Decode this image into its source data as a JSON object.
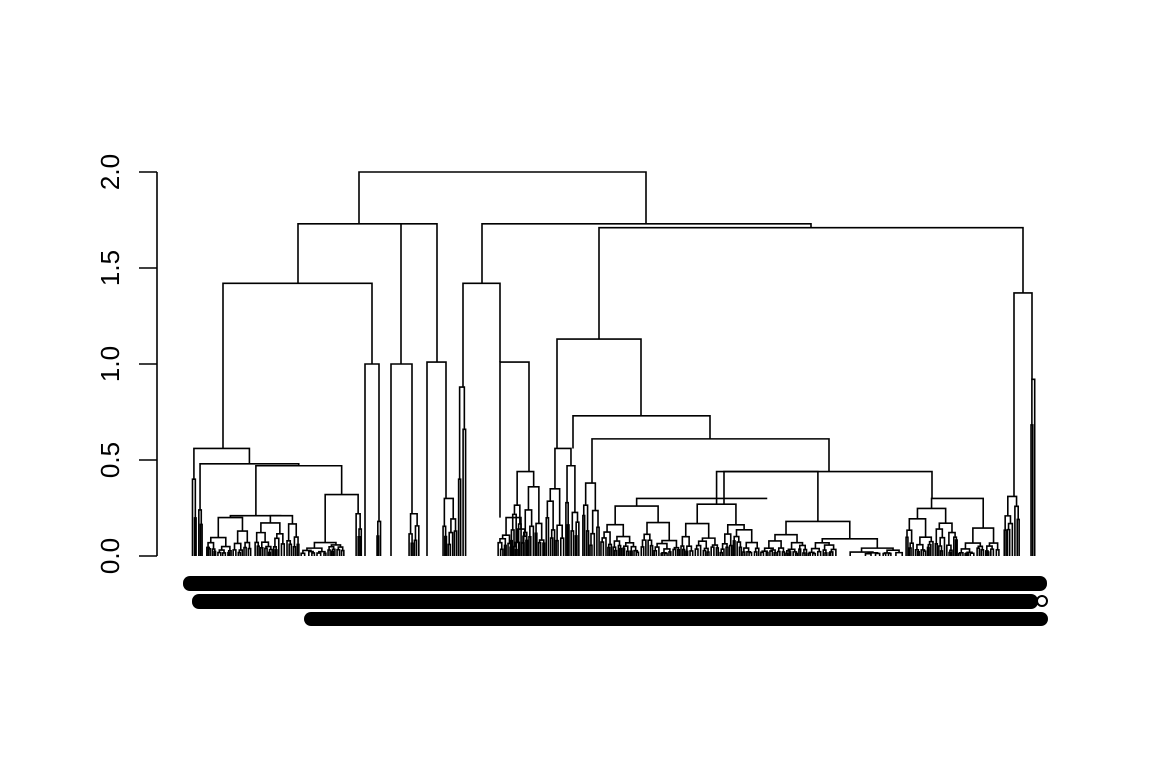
{
  "chart_data": {
    "type": "dendrogram",
    "title": "",
    "xlabel": "",
    "ylabel": "",
    "ylim": [
      0,
      2.0
    ],
    "y_ticks": [
      "0.0",
      "0.5",
      "1.0",
      "1.5",
      "2.0"
    ],
    "y_tick_values": [
      0,
      0.5,
      1.0,
      1.5,
      2.0
    ],
    "grid": false,
    "legend": "none",
    "leaf_labels_legible": false,
    "major_merge_heights": [
      2.0,
      1.73,
      1.72,
      1.71,
      1.42,
      1.42,
      1.37,
      1.13,
      1.01,
      1.01,
      1.0,
      1.0,
      0.73,
      0.61,
      0.56,
      0.47,
      0.44,
      0.44,
      0.32,
      0.31
    ],
    "colors": {
      "ink": "#000000",
      "background": "#ffffff"
    }
  }
}
